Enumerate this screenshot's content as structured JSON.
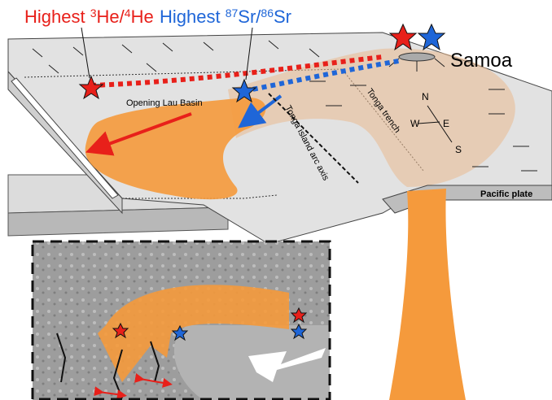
{
  "labels": {
    "helium": {
      "parts": [
        "Highest ",
        "3",
        "He/",
        "4",
        "He"
      ]
    },
    "strontium": {
      "parts": [
        "Highest ",
        "87",
        "Sr/",
        "86",
        "Sr"
      ]
    },
    "samoa": "Samoa",
    "lau_basin": "Opening Lau Basin",
    "arc_axis": "Tonga island arc axis",
    "trench": "Tonga trench",
    "pacific_plate": "Pacific plate",
    "compass": {
      "n": "N",
      "w": "W",
      "e": "E",
      "s": "S"
    }
  }
}
